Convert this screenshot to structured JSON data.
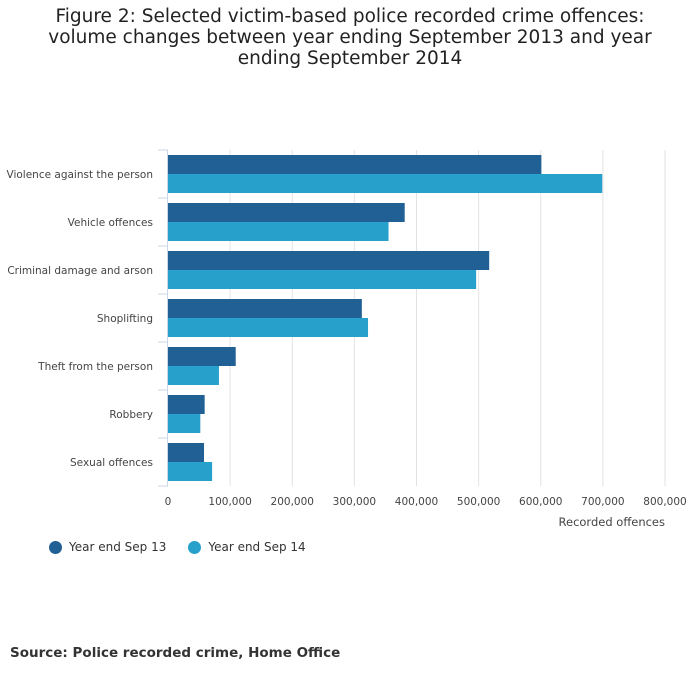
{
  "title": "Figure 2: Selected victim-based police recorded crime offences: volume changes between year ending September 2013 and year ending September 2014",
  "source": "Source: Police recorded crime, Home Office",
  "colors": {
    "series1": "#206095",
    "series2": "#27a0cc",
    "grid": "#e2e2e3",
    "axis": "#ccd6eb",
    "text": "#333333"
  },
  "chart_data": {
    "type": "bar",
    "orientation": "horizontal",
    "title": "Figure 2: Selected victim-based police recorded crime offences: volume changes between year ending September 2013 and year ending September 2014",
    "categories": [
      "Violence against the person",
      "Vehicle offences",
      "Criminal damage and arson",
      "Shoplifting",
      "Theft from the person",
      "Robbery",
      "Sexual offences"
    ],
    "series": [
      {
        "name": "Year end Sep 13",
        "values": [
          601000,
          381000,
          517000,
          312000,
          109000,
          59000,
          58000
        ]
      },
      {
        "name": "Year end Sep 14",
        "values": [
          699000,
          355000,
          496000,
          322000,
          82000,
          52000,
          71000
        ]
      }
    ],
    "xlabel": "Recorded offences",
    "ylabel": "",
    "xlim": [
      0,
      800000
    ],
    "ticks": [
      0,
      100000,
      200000,
      300000,
      400000,
      500000,
      600000,
      700000,
      800000
    ],
    "tick_labels": [
      "0",
      "100,000",
      "200,000",
      "300,000",
      "400,000",
      "500,000",
      "600,000",
      "700,000",
      "800,000"
    ],
    "grid": true,
    "legend_position": "bottom-left"
  }
}
